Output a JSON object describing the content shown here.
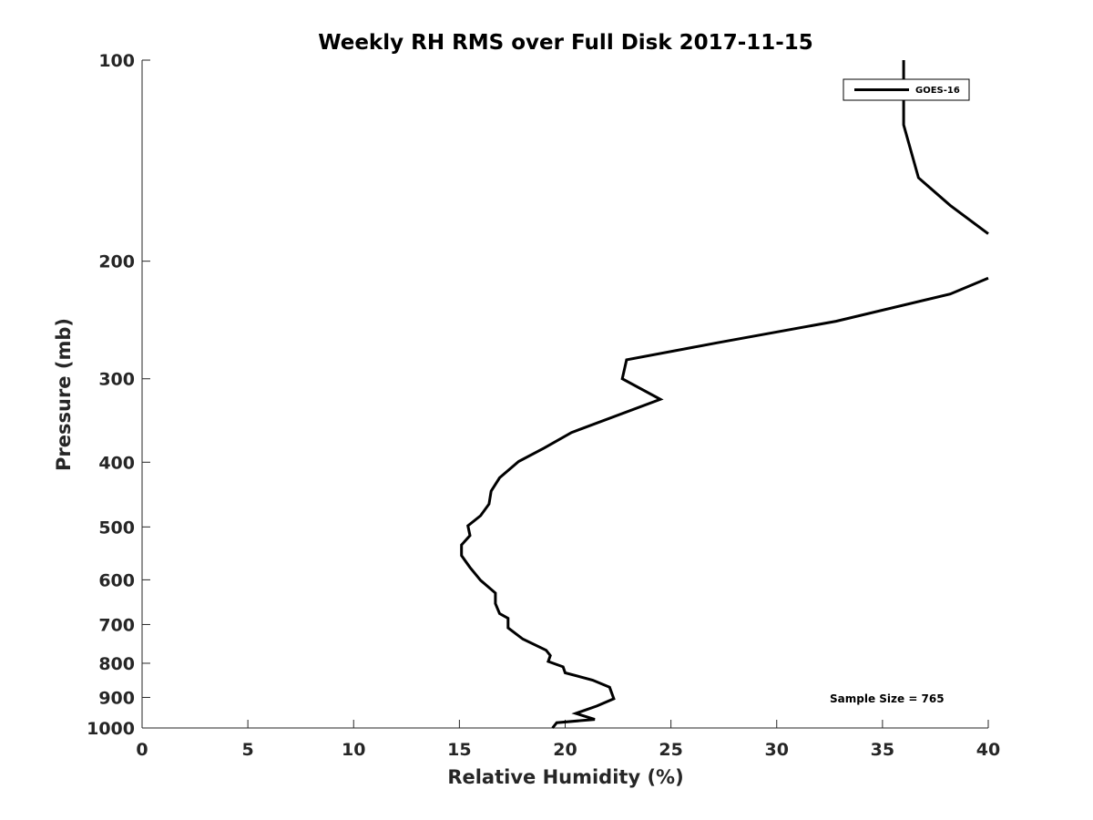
{
  "chart_data": {
    "type": "line",
    "title": "Weekly RH RMS over Full Disk 2017-11-15",
    "xlabel": "Relative Humidity (%)",
    "ylabel": "Pressure (mb)",
    "xlim": [
      0,
      40
    ],
    "ylim": [
      100,
      1000
    ],
    "y_scale": "log",
    "y_reversed": true,
    "x_ticks": [
      "0",
      "5",
      "10",
      "15",
      "20",
      "25",
      "30",
      "35",
      "40"
    ],
    "y_ticks": [
      "100",
      "200",
      "300",
      "400",
      "500",
      "600",
      "700",
      "800",
      "900",
      "1000"
    ],
    "grid": false,
    "legend": {
      "position": "top-right",
      "entries": [
        "GOES-16"
      ]
    },
    "annotation": "Sample Size = 765",
    "series": [
      {
        "name": "GOES-16",
        "color": "#000000",
        "segments": [
          [
            [
              36.0,
              100
            ],
            [
              36.0,
              125
            ],
            [
              36.7,
              150
            ],
            [
              38.2,
              165
            ],
            [
              40.0,
              182
            ]
          ],
          [
            [
              40.0,
              212
            ],
            [
              38.2,
              224
            ],
            [
              32.8,
              246
            ],
            [
              27.2,
              265
            ],
            [
              22.9,
              281
            ],
            [
              22.7,
              300
            ],
            [
              24.5,
              322
            ],
            [
              20.3,
              361
            ],
            [
              19.0,
              381
            ],
            [
              17.8,
              399
            ],
            [
              16.9,
              422
            ],
            [
              16.5,
              442
            ],
            [
              16.4,
              462
            ],
            [
              16.0,
              481
            ],
            [
              15.4,
              498
            ],
            [
              15.5,
              515
            ],
            [
              15.1,
              532
            ],
            [
              15.1,
              552
            ],
            [
              15.5,
              575
            ],
            [
              16.0,
              601
            ],
            [
              16.7,
              628
            ],
            [
              16.7,
              651
            ],
            [
              16.9,
              674
            ],
            [
              17.3,
              685
            ],
            [
              17.3,
              708
            ],
            [
              18.0,
              736
            ],
            [
              19.1,
              765
            ],
            [
              19.3,
              779
            ],
            [
              19.2,
              795
            ],
            [
              19.9,
              810
            ],
            [
              20.0,
              827
            ],
            [
              21.3,
              848
            ],
            [
              22.1,
              869
            ],
            [
              22.3,
              904
            ],
            [
              21.5,
              927
            ],
            [
              20.5,
              951
            ],
            [
              21.4,
              971
            ],
            [
              19.6,
              982
            ],
            [
              19.4,
              1000
            ]
          ]
        ]
      }
    ]
  }
}
